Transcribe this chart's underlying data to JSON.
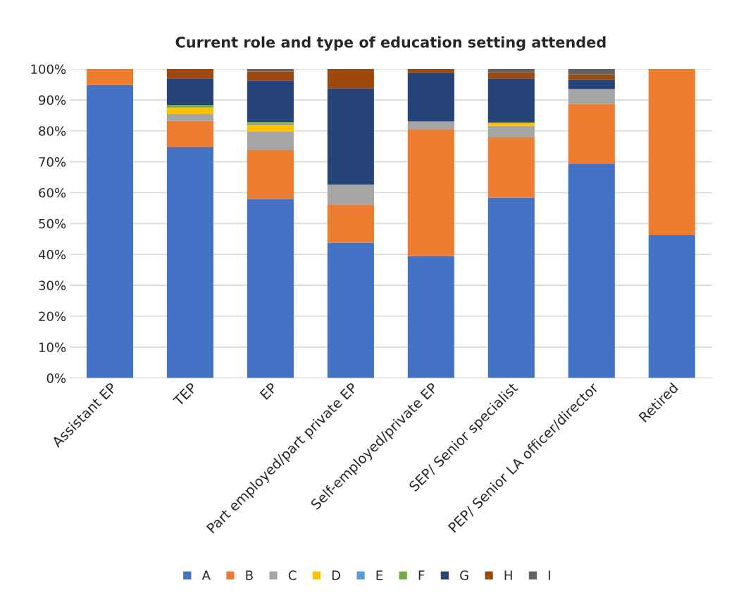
{
  "chart_data": {
    "type": "bar",
    "title": "Current role and type of education setting attended",
    "stacked": true,
    "categories": [
      "Assistant EP",
      "TEP",
      "EP",
      "Part employed/part private EP",
      "Self-employed/private EP",
      "SEP/ Senior specialist",
      "PEP/ Senior LA officer/director",
      "Retired"
    ],
    "series": [
      {
        "name": "A",
        "color": "#4472c4",
        "values": [
          94.8,
          74.7,
          58.0,
          43.8,
          39.5,
          58.4,
          69.4,
          46.2
        ]
      },
      {
        "name": "B",
        "color": "#ed7d31",
        "values": [
          5.2,
          8.5,
          15.8,
          12.4,
          40.9,
          19.5,
          19.3,
          53.8
        ]
      },
      {
        "name": "C",
        "color": "#a5a5a5",
        "values": [
          0,
          2.2,
          6.0,
          6.4,
          2.6,
          3.7,
          4.8,
          0
        ]
      },
      {
        "name": "D",
        "color": "#ffc000",
        "values": [
          0,
          2.1,
          2.2,
          0,
          0,
          1.1,
          0,
          0
        ]
      },
      {
        "name": "E",
        "color": "#5b9bd5",
        "values": [
          0,
          0,
          0.3,
          0,
          0,
          0,
          0,
          0
        ]
      },
      {
        "name": "F",
        "color": "#70ad47",
        "values": [
          0,
          0.9,
          0.6,
          0,
          0,
          0,
          0,
          0
        ]
      },
      {
        "name": "G",
        "color": "#264478",
        "values": [
          0,
          8.6,
          13.4,
          31.2,
          15.8,
          14.3,
          3.2,
          0
        ]
      },
      {
        "name": "H",
        "color": "#9e480e",
        "values": [
          0,
          3.0,
          2.9,
          6.2,
          1.2,
          1.9,
          1.6,
          0
        ]
      },
      {
        "name": "I",
        "color": "#636363",
        "values": [
          0,
          0,
          0.8,
          0,
          0,
          1.1,
          1.7,
          0
        ]
      }
    ],
    "ylim": [
      0,
      100
    ],
    "yticks": [
      {
        "value": 0,
        "label": "0%"
      },
      {
        "value": 10,
        "label": "10%"
      },
      {
        "value": 20,
        "label": "20%"
      },
      {
        "value": 30,
        "label": "30%"
      },
      {
        "value": 40,
        "label": "40%"
      },
      {
        "value": 50,
        "label": "50%"
      },
      {
        "value": 60,
        "label": "60%"
      },
      {
        "value": 70,
        "label": "70%"
      },
      {
        "value": 80,
        "label": "80%"
      },
      {
        "value": 90,
        "label": "90%"
      },
      {
        "value": 100,
        "label": "100%"
      }
    ],
    "grid": "y",
    "legend": "bottom"
  }
}
